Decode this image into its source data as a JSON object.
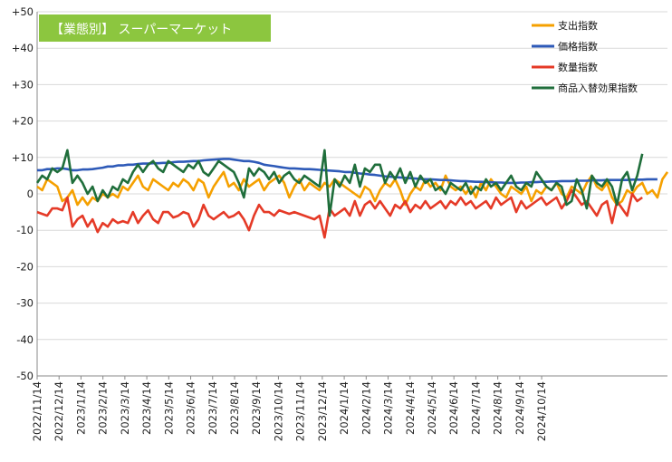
{
  "chart_data": {
    "type": "line",
    "title": "【業態別】 スーパーマーケット",
    "title_bg_color": "#8cc63f",
    "ylim": [
      -50,
      50
    ],
    "ytick_step": 10,
    "ytick_labels": [
      "+50",
      "+40",
      "+30",
      "+20",
      "+10",
      "0",
      "-10",
      "-20",
      "-30",
      "-40",
      "-50"
    ],
    "x_labels": [
      "2022/11/14",
      "2022/12/14",
      "2023/1/14",
      "2023/2/14",
      "2023/3/14",
      "2023/4/14",
      "2023/5/14",
      "2023/6/14",
      "2023/7/14",
      "2023/8/14",
      "2023/9/14",
      "2023/10/14",
      "2023/11/14",
      "2023/12/14",
      "2024/1/14",
      "2024/2/14",
      "2024/3/14",
      "2024/4/14",
      "2024/5/14",
      "2024/6/14",
      "2024/7/14",
      "2024/8/14",
      "2024/9/14",
      "2024/10/14"
    ],
    "x_label_first_index": 0,
    "x_label_step": 4.35,
    "grid": true,
    "legend_position": "top-right",
    "series": [
      {
        "name": "支出指数",
        "color": "#f5a000",
        "values": [
          2,
          1,
          4,
          3,
          2,
          -2,
          -1,
          1,
          -3,
          -1,
          -3,
          -1,
          -2,
          0,
          -1,
          0,
          -1,
          2,
          1,
          3,
          5,
          2,
          1,
          4,
          3,
          2,
          1,
          3,
          2,
          4,
          3,
          1,
          4,
          3,
          -1,
          2,
          4,
          6,
          2,
          3,
          1,
          4,
          2,
          3,
          4,
          1,
          3,
          4,
          5,
          3,
          -1,
          2,
          4,
          1,
          3,
          2,
          1,
          3,
          2,
          4,
          3,
          2,
          1,
          0,
          -1,
          2,
          1,
          -2,
          1,
          3,
          2,
          4,
          1,
          -3,
          0,
          2,
          1,
          4,
          2,
          3,
          1,
          5,
          2,
          1,
          2,
          0,
          2,
          -1,
          3,
          1,
          4,
          2,
          0,
          -1,
          2,
          1,
          0,
          2,
          -2,
          1,
          0,
          2,
          1,
          3,
          0,
          -1,
          2,
          1,
          0,
          3,
          5,
          2,
          1,
          3,
          -1,
          -3,
          -2,
          1,
          0,
          2,
          3,
          0,
          1,
          -1,
          4,
          6
        ]
      },
      {
        "name": "価格指数",
        "color": "#2e5ab8",
        "values": [
          6.5,
          6.5,
          6.8,
          6.8,
          7,
          7,
          6.8,
          6.5,
          6.5,
          6.7,
          6.7,
          6.8,
          7,
          7.2,
          7.5,
          7.5,
          7.8,
          7.8,
          8,
          8,
          8.2,
          8.3,
          8.3,
          8.4,
          8.4,
          8.5,
          8.5,
          8.7,
          8.8,
          8.8,
          8.9,
          9,
          9,
          9.2,
          9.3,
          9.4,
          9.5,
          9.6,
          9.6,
          9.4,
          9.2,
          9,
          9,
          8.8,
          8.5,
          8,
          7.8,
          7.6,
          7.4,
          7.2,
          7,
          7,
          6.9,
          6.8,
          6.8,
          6.7,
          6.6,
          6.5,
          6.4,
          6.3,
          6.2,
          6,
          6,
          5.8,
          5.6,
          5.5,
          5.3,
          5.2,
          5,
          4.8,
          4.7,
          4.6,
          4.5,
          4.4,
          4.3,
          4.2,
          4.1,
          4,
          4,
          3.9,
          3.8,
          3.8,
          3.7,
          3.6,
          3.5,
          3.5,
          3.4,
          3.3,
          3.3,
          3.2,
          3.2,
          3.1,
          3.1,
          3,
          3,
          3,
          3.1,
          3.1,
          3.2,
          3.2,
          3.3,
          3.3,
          3.4,
          3.4,
          3.5,
          3.5,
          3.5,
          3.6,
          3.6,
          3.6,
          3.7,
          3.7,
          3.7,
          3.8,
          3.8,
          3.8,
          3.8,
          3.8,
          3.9,
          3.9,
          3.9,
          4,
          4,
          4
        ]
      },
      {
        "name": "数量指数",
        "color": "#e53a27",
        "values": [
          -5,
          -5.5,
          -6,
          -4,
          -4,
          -4.5,
          -1,
          -9,
          -7,
          -6,
          -9,
          -7,
          -10.5,
          -8,
          -9,
          -7,
          -8,
          -7.5,
          -8,
          -5,
          -8,
          -6,
          -4.5,
          -7,
          -8,
          -5,
          -5,
          -6.5,
          -6,
          -5,
          -5.5,
          -9,
          -7,
          -3,
          -6,
          -7,
          -6,
          -5,
          -6.5,
          -6,
          -5,
          -7,
          -10,
          -6,
          -3,
          -5,
          -5,
          -6,
          -4.5,
          -5,
          -5.5,
          -5,
          -5.5,
          -6,
          -6.5,
          -7,
          -6,
          -12,
          -4,
          -6,
          -5,
          -4,
          -6,
          -2,
          -6,
          -3,
          -2,
          -4,
          -2,
          -4,
          -6,
          -3,
          -4,
          -2,
          -5,
          -3,
          -4,
          -2,
          -4,
          -3,
          -2,
          -4,
          -2,
          -3,
          -1,
          -3,
          -2,
          -4,
          -3,
          -2,
          -4,
          -1,
          -3,
          -2,
          -1,
          -5,
          -2,
          -4,
          -3,
          -2,
          -1,
          -3,
          -2,
          -1,
          -4,
          -2,
          1,
          -1,
          -3,
          -2,
          -4,
          -6,
          -3,
          -2,
          -8,
          -2,
          -4,
          -6,
          0,
          -2,
          -1
        ]
      },
      {
        "name": "商品入替効果指数",
        "color": "#1f6e3b",
        "values": [
          3,
          5,
          4,
          7,
          6,
          7,
          12,
          3,
          5,
          3,
          0,
          2,
          -2,
          1,
          -1,
          2,
          1,
          4,
          3,
          6,
          8,
          6,
          8,
          9,
          7,
          6,
          9,
          8,
          7,
          6,
          8,
          7,
          9,
          6,
          5,
          7,
          9,
          8,
          7,
          6,
          3,
          -1,
          7,
          5,
          7,
          6,
          4,
          6,
          3,
          5,
          6,
          4,
          3,
          5,
          4,
          3,
          2,
          12,
          -6,
          4,
          2,
          5,
          3,
          8,
          2,
          7,
          6,
          8,
          8,
          3,
          6,
          4,
          7,
          3,
          6,
          2,
          5,
          3,
          4,
          1,
          2,
          0,
          3,
          2,
          1,
          3,
          0,
          2,
          1,
          4,
          2,
          3,
          1,
          3,
          5,
          2,
          1,
          3,
          2,
          6,
          4,
          2,
          1,
          3,
          2,
          -3,
          -2,
          4,
          1,
          -4,
          5,
          3,
          2,
          4,
          2,
          -3,
          4,
          6,
          1,
          5,
          11
        ]
      }
    ]
  }
}
